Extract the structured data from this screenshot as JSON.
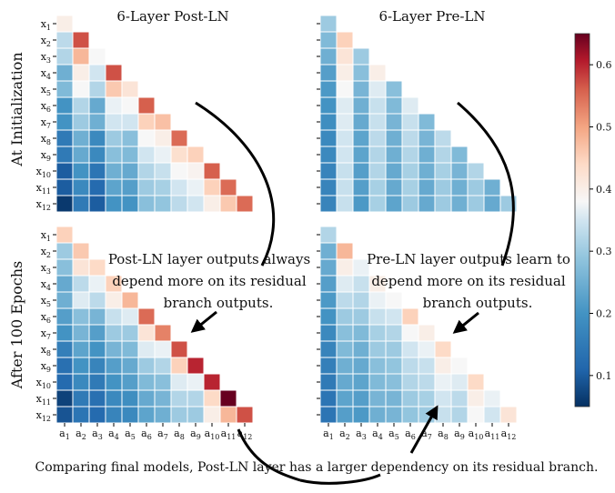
{
  "figure": {
    "row_labels": [
      "At Initialization",
      "After 100 Epochs"
    ],
    "col_titles": [
      "6-Layer Post-LN",
      "6-Layer Pre-LN"
    ],
    "annotations": {
      "post_ln": [
        "Post-LN layer outputs always",
        "depend more on its residual",
        "branch outputs."
      ],
      "pre_ln": [
        "Pre-LN layer outputs learn to",
        "depend more on its residual",
        "branch outputs."
      ],
      "bottom": "Comparing final models, Post-LN layer has a larger dependency on its residual branch."
    },
    "colormap": "RdBu_r",
    "colorbar": {
      "ticks": [
        "0.1",
        "0.2",
        "0.3",
        "0.4",
        "0.5",
        "0.6"
      ],
      "min": 0.05,
      "max": 0.65
    }
  },
  "chart_data": [
    {
      "type": "heatmap",
      "title": "6-Layer Post-LN",
      "row_label": "At Initialization",
      "y_categories": [
        "x1",
        "x2",
        "x3",
        "x4",
        "x5",
        "x6",
        "x7",
        "x8",
        "x9",
        "x10",
        "x11",
        "x12"
      ],
      "x_categories": [
        "a1",
        "a2",
        "a3",
        "a4",
        "a5",
        "a6",
        "a7",
        "a8",
        "a9",
        "a10",
        "a11",
        "a12"
      ],
      "values": [
        [
          0.4
        ],
        [
          0.33,
          0.57
        ],
        [
          0.32,
          0.48,
          0.38
        ],
        [
          0.25,
          0.4,
          0.35,
          0.57
        ],
        [
          0.27,
          0.38,
          0.32,
          0.46,
          0.42
        ],
        [
          0.2,
          0.32,
          0.24,
          0.37,
          0.38,
          0.56
        ],
        [
          0.2,
          0.3,
          0.25,
          0.35,
          0.35,
          0.45,
          0.47
        ],
        [
          0.15,
          0.25,
          0.18,
          0.3,
          0.28,
          0.38,
          0.4,
          0.55
        ],
        [
          0.15,
          0.24,
          0.18,
          0.28,
          0.27,
          0.35,
          0.37,
          0.43,
          0.45
        ],
        [
          0.1,
          0.2,
          0.14,
          0.25,
          0.24,
          0.32,
          0.34,
          0.38,
          0.39,
          0.56
        ],
        [
          0.1,
          0.18,
          0.12,
          0.23,
          0.22,
          0.3,
          0.31,
          0.35,
          0.37,
          0.45,
          0.55
        ],
        [
          0.06,
          0.15,
          0.1,
          0.2,
          0.2,
          0.28,
          0.29,
          0.33,
          0.35,
          0.4,
          0.46,
          0.55
        ]
      ]
    },
    {
      "type": "heatmap",
      "title": "6-Layer Pre-LN",
      "row_label": "At Initialization",
      "y_categories": [
        "x1",
        "x2",
        "x3",
        "x4",
        "x5",
        "x6",
        "x7",
        "x8",
        "x9",
        "x10",
        "x11",
        "x12"
      ],
      "x_categories": [
        "a1",
        "a2",
        "a3",
        "a4",
        "a5",
        "a6",
        "a7",
        "a8",
        "a9",
        "a10",
        "a11",
        "a12"
      ],
      "values": [
        [
          0.3
        ],
        [
          0.27,
          0.45
        ],
        [
          0.25,
          0.42,
          0.3
        ],
        [
          0.22,
          0.4,
          0.28,
          0.4
        ],
        [
          0.21,
          0.38,
          0.26,
          0.36,
          0.28
        ],
        [
          0.2,
          0.36,
          0.25,
          0.34,
          0.27,
          0.36
        ],
        [
          0.19,
          0.36,
          0.24,
          0.34,
          0.26,
          0.34,
          0.27
        ],
        [
          0.18,
          0.35,
          0.23,
          0.33,
          0.25,
          0.33,
          0.26,
          0.33
        ],
        [
          0.18,
          0.35,
          0.23,
          0.32,
          0.25,
          0.32,
          0.25,
          0.32,
          0.27
        ],
        [
          0.17,
          0.34,
          0.22,
          0.32,
          0.24,
          0.31,
          0.25,
          0.31,
          0.26,
          0.32
        ],
        [
          0.17,
          0.34,
          0.22,
          0.31,
          0.24,
          0.31,
          0.24,
          0.3,
          0.25,
          0.3,
          0.25
        ],
        [
          0.17,
          0.34,
          0.21,
          0.31,
          0.23,
          0.3,
          0.24,
          0.3,
          0.25,
          0.3,
          0.24,
          0.3
        ]
      ]
    },
    {
      "type": "heatmap",
      "title": "6-Layer Post-LN",
      "row_label": "After 100 Epochs",
      "y_categories": [
        "x1",
        "x2",
        "x3",
        "x4",
        "x5",
        "x6",
        "x7",
        "x8",
        "x9",
        "x10",
        "x11",
        "x12"
      ],
      "x_categories": [
        "a1",
        "a2",
        "a3",
        "a4",
        "a5",
        "a6",
        "a7",
        "a8",
        "a9",
        "a10",
        "a11",
        "a12"
      ],
      "values": [
        [
          0.45
        ],
        [
          0.3,
          0.46
        ],
        [
          0.28,
          0.42,
          0.44
        ],
        [
          0.24,
          0.33,
          0.37,
          0.45
        ],
        [
          0.25,
          0.36,
          0.33,
          0.4,
          0.48
        ],
        [
          0.22,
          0.28,
          0.26,
          0.34,
          0.36,
          0.55
        ],
        [
          0.2,
          0.26,
          0.22,
          0.3,
          0.3,
          0.42,
          0.53
        ],
        [
          0.16,
          0.23,
          0.2,
          0.26,
          0.27,
          0.36,
          0.37,
          0.57
        ],
        [
          0.13,
          0.2,
          0.17,
          0.22,
          0.24,
          0.3,
          0.32,
          0.45,
          0.6
        ],
        [
          0.12,
          0.18,
          0.15,
          0.2,
          0.22,
          0.27,
          0.28,
          0.36,
          0.37,
          0.6
        ],
        [
          0.07,
          0.15,
          0.13,
          0.18,
          0.19,
          0.24,
          0.26,
          0.32,
          0.32,
          0.44,
          0.65
        ],
        [
          0.09,
          0.14,
          0.12,
          0.17,
          0.18,
          0.23,
          0.25,
          0.3,
          0.3,
          0.4,
          0.48,
          0.57
        ]
      ]
    },
    {
      "type": "heatmap",
      "title": "6-Layer Pre-LN",
      "row_label": "After 100 Epochs",
      "y_categories": [
        "x1",
        "x2",
        "x3",
        "x4",
        "x5",
        "x6",
        "x7",
        "x8",
        "x9",
        "x10",
        "x11",
        "x12"
      ],
      "x_categories": [
        "a1",
        "a2",
        "a3",
        "a4",
        "a5",
        "a6",
        "a7",
        "a8",
        "a9",
        "a10",
        "a11",
        "a12"
      ],
      "values": [
        [
          0.32
        ],
        [
          0.25,
          0.48
        ],
        [
          0.24,
          0.4,
          0.37
        ],
        [
          0.22,
          0.36,
          0.34,
          0.4
        ],
        [
          0.21,
          0.33,
          0.32,
          0.37,
          0.38
        ],
        [
          0.2,
          0.3,
          0.3,
          0.34,
          0.35,
          0.45
        ],
        [
          0.18,
          0.28,
          0.27,
          0.31,
          0.32,
          0.38,
          0.4
        ],
        [
          0.17,
          0.27,
          0.25,
          0.3,
          0.3,
          0.35,
          0.37,
          0.44
        ],
        [
          0.16,
          0.25,
          0.24,
          0.28,
          0.29,
          0.33,
          0.34,
          0.4,
          0.38
        ],
        [
          0.15,
          0.24,
          0.23,
          0.27,
          0.28,
          0.32,
          0.33,
          0.37,
          0.36,
          0.44
        ],
        [
          0.14,
          0.23,
          0.22,
          0.26,
          0.26,
          0.3,
          0.31,
          0.35,
          0.33,
          0.4,
          0.37
        ],
        [
          0.14,
          0.22,
          0.21,
          0.25,
          0.26,
          0.29,
          0.3,
          0.34,
          0.32,
          0.38,
          0.35,
          0.42
        ]
      ]
    }
  ]
}
